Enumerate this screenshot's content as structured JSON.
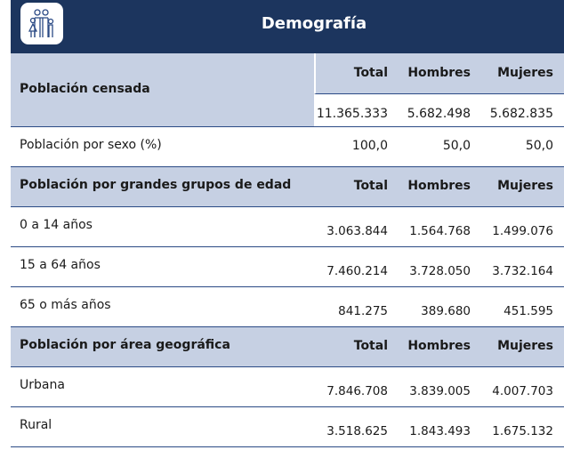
{
  "header": {
    "title": "Demografía",
    "icon": "family-icon"
  },
  "censada": {
    "label": "Población censada",
    "cols": [
      "Total",
      "Hombres",
      "Mujeres"
    ],
    "values": [
      "11.365.333",
      "5.682.498",
      "5.682.835"
    ]
  },
  "sexo": {
    "label": "Población por sexo (%)",
    "values": [
      "100,0",
      "50,0",
      "50,0"
    ]
  },
  "edad": {
    "label": "Población por grandes grupos de edad",
    "cols": [
      "Total",
      "Hombres",
      "Mujeres"
    ],
    "rows": [
      {
        "label": "0 a 14 años",
        "values": [
          "3.063.844",
          "1.564.768",
          "1.499.076"
        ]
      },
      {
        "label": "15 a 64 años",
        "values": [
          "7.460.214",
          "3.728.050",
          "3.732.164"
        ]
      },
      {
        "label": "65 o más años",
        "values": [
          "841.275",
          "389.680",
          "451.595"
        ]
      }
    ]
  },
  "area": {
    "label": "Población por área geográfica",
    "cols": [
      "Total",
      "Hombres",
      "Mujeres"
    ],
    "rows": [
      {
        "label": "Urbana",
        "values": [
          "7.846.708",
          "3.839.005",
          "4.007.703"
        ]
      },
      {
        "label": "Rural",
        "values": [
          "3.518.625",
          "1.843.493",
          "1.675.132"
        ]
      }
    ]
  },
  "colors": {
    "header": "#1c355e",
    "section": "#c6d0e3"
  }
}
